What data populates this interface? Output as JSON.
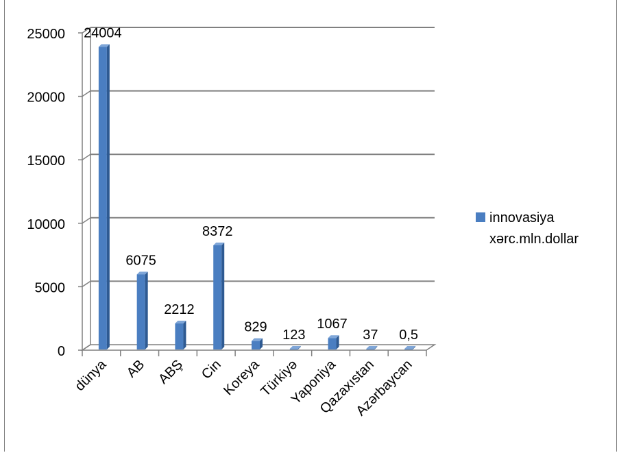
{
  "chart_data": {
    "type": "bar",
    "style": "3d-column",
    "title": "",
    "xlabel": "",
    "ylabel": "",
    "categories": [
      "dünya",
      "AB",
      "ABŞ",
      "Cin",
      "Koreya",
      "Türkiyə",
      "Yaponiya",
      "Qazaxıstan",
      "Azərbaycan"
    ],
    "data_labels": [
      "24004",
      "6075",
      "2212",
      "8372",
      "829",
      "123",
      "1067",
      "37",
      "0,5"
    ],
    "series": [
      {
        "name": "innovasiya xərc.mln.dollar",
        "name_lines": [
          "innovasiya",
          "xərc.mln.dollar"
        ],
        "values": [
          24004,
          6075,
          2212,
          8372,
          829,
          123,
          1067,
          37,
          0.5
        ]
      }
    ],
    "ylim": [
      0,
      25000
    ],
    "yticks": [
      0,
      5000,
      10000,
      15000,
      20000,
      25000
    ],
    "ytick_labels": [
      "0",
      "5000",
      "10000",
      "15000",
      "20000",
      "25000"
    ],
    "grid": true,
    "legend_position": "right",
    "colors": {
      "bar_front": "#4A7EC1",
      "bar_side": "#2E5A92",
      "bar_top": "#7FA6D8",
      "grid": "#808080",
      "axis": "#808080",
      "border": "#808080"
    }
  }
}
